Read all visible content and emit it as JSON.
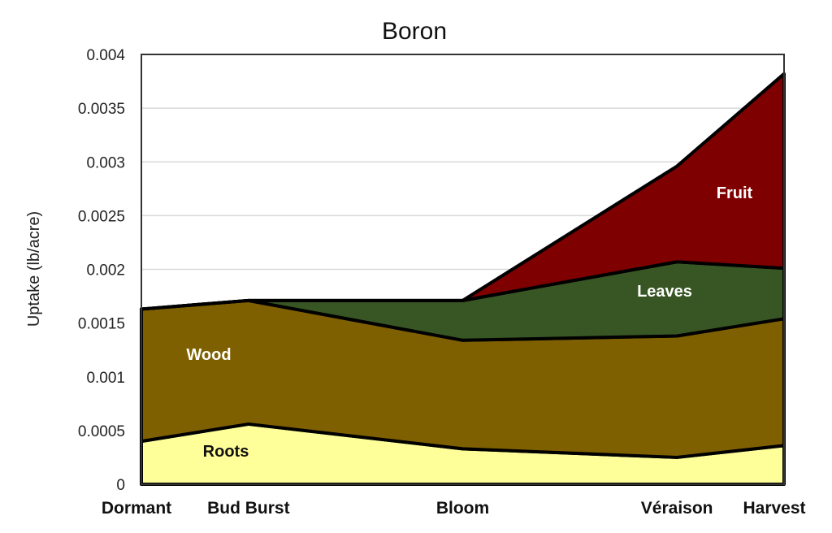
{
  "chart_data": {
    "type": "area",
    "stacked": true,
    "title": "Boron",
    "xlabel": "",
    "ylabel": "Uptake  (lb/acre)",
    "categories": [
      "Dormant",
      "Bud Burst",
      "Bloom",
      "Véraison",
      "Harvest"
    ],
    "x": [
      0,
      1,
      3,
      5,
      6
    ],
    "ylim": [
      0,
      0.004
    ],
    "yticks": [
      "0",
      "0.0005",
      "0.001",
      "0.0015",
      "0.002",
      "0.0025",
      "0.003",
      "0.0035",
      "0.004"
    ],
    "grid": true,
    "legend": "inline labels",
    "series": [
      {
        "name": "Roots",
        "color": "#ffff99",
        "label_color": "#111111",
        "values": [
          0.0004,
          0.00056,
          0.00033,
          0.00025,
          0.00036
        ]
      },
      {
        "name": "Wood",
        "color": "#7f6000",
        "label_color": "#ffffff",
        "values": [
          0.00123,
          0.00115,
          0.00101,
          0.00113,
          0.00118
        ]
      },
      {
        "name": "Leaves",
        "color": "#375623",
        "label_color": "#ffffff",
        "values": [
          0,
          0,
          0.00037,
          0.00069,
          0.00047
        ]
      },
      {
        "name": "Fruit",
        "color": "#7f0000",
        "label_color": "#ffffff",
        "values": [
          0,
          0,
          0,
          0.00089,
          0.00181
        ]
      }
    ]
  }
}
